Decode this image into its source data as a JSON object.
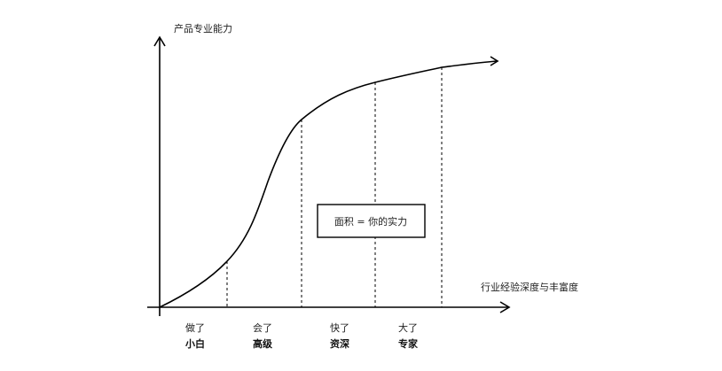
{
  "y_axis_label": "产品专业能力",
  "x_axis_label": "行业经验深度与丰富度",
  "area_label": "面积 = 你的实力",
  "stages": [
    {
      "line1": "做了",
      "line2": "小白"
    },
    {
      "line1": "会了",
      "line2": "高级"
    },
    {
      "line1": "快了",
      "line2": "资深"
    },
    {
      "line1": "大了",
      "line2": "专家"
    }
  ],
  "colors": {
    "line": "#000000",
    "background": "#ffffff"
  }
}
